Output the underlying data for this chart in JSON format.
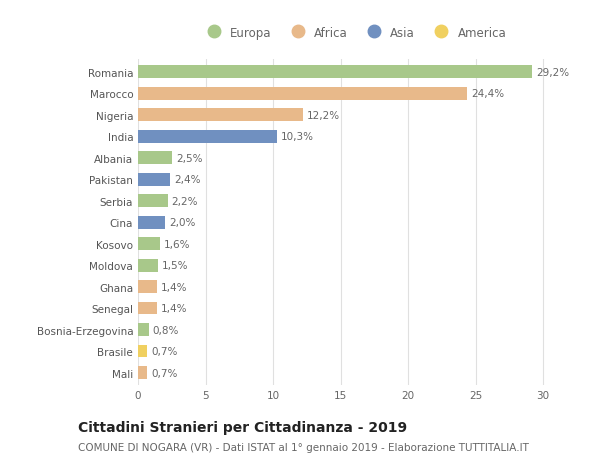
{
  "categories": [
    "Romania",
    "Marocco",
    "Nigeria",
    "India",
    "Albania",
    "Pakistan",
    "Serbia",
    "Cina",
    "Kosovo",
    "Moldova",
    "Ghana",
    "Senegal",
    "Bosnia-Erzegovina",
    "Brasile",
    "Mali"
  ],
  "values": [
    29.2,
    24.4,
    12.2,
    10.3,
    2.5,
    2.4,
    2.2,
    2.0,
    1.6,
    1.5,
    1.4,
    1.4,
    0.8,
    0.7,
    0.7
  ],
  "labels": [
    "29,2%",
    "24,4%",
    "12,2%",
    "10,3%",
    "2,5%",
    "2,4%",
    "2,2%",
    "2,0%",
    "1,6%",
    "1,5%",
    "1,4%",
    "1,4%",
    "0,8%",
    "0,7%",
    "0,7%"
  ],
  "continents": [
    "Europa",
    "Africa",
    "Africa",
    "Asia",
    "Europa",
    "Asia",
    "Europa",
    "Asia",
    "Europa",
    "Europa",
    "Africa",
    "Africa",
    "Europa",
    "America",
    "Africa"
  ],
  "continent_colors": {
    "Europa": "#a8c88a",
    "Africa": "#e8b98a",
    "Asia": "#7090c0",
    "America": "#f0d060"
  },
  "legend_order": [
    "Europa",
    "Africa",
    "Asia",
    "America"
  ],
  "title": "Cittadini Stranieri per Cittadinanza - 2019",
  "subtitle": "COMUNE DI NOGARA (VR) - Dati ISTAT al 1° gennaio 2019 - Elaborazione TUTTITALIA.IT",
  "xlim": [
    0,
    32
  ],
  "xticks": [
    0,
    5,
    10,
    15,
    20,
    25,
    30
  ],
  "background_color": "#ffffff",
  "grid_color": "#e0e0e0",
  "bar_height": 0.6,
  "title_fontsize": 10,
  "subtitle_fontsize": 7.5,
  "label_fontsize": 7.5,
  "tick_fontsize": 7.5,
  "legend_fontsize": 8.5
}
